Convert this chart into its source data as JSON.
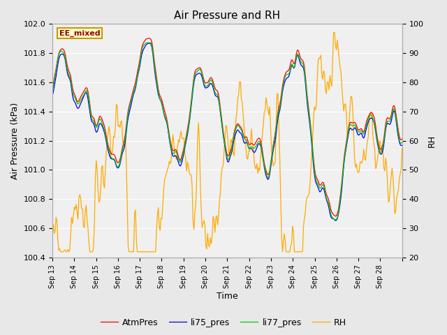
{
  "title": "Air Pressure and RH",
  "xlabel": "Time",
  "ylabel_left": "Air Pressure (kPa)",
  "ylabel_right": "RH",
  "annotation": "EE_mixed",
  "ylim_left": [
    100.4,
    102.0
  ],
  "ylim_right": [
    20,
    100
  ],
  "yticks_left": [
    100.4,
    100.6,
    100.8,
    101.0,
    101.2,
    101.4,
    101.6,
    101.8,
    102.0
  ],
  "yticks_right": [
    20,
    30,
    40,
    50,
    60,
    70,
    80,
    90,
    100
  ],
  "x_labels": [
    "Sep 13",
    "Sep 14",
    "Sep 15",
    "Sep 16",
    "Sep 17",
    "Sep 18",
    "Sep 19",
    "Sep 20",
    "Sep 21",
    "Sep 22",
    "Sep 23",
    "Sep 24",
    "Sep 25",
    "Sep 26",
    "Sep 27",
    "Sep 28"
  ],
  "n_days": 16,
  "colors": {
    "AtmPres": "#ff0000",
    "li75_pres": "#0000ff",
    "li77_pres": "#00cc00",
    "RH": "#ffaa00"
  },
  "background_fig": "#e8e8e8",
  "background_axes": "#f0f0f0",
  "grid_color": "#ffffff",
  "seed": 137
}
